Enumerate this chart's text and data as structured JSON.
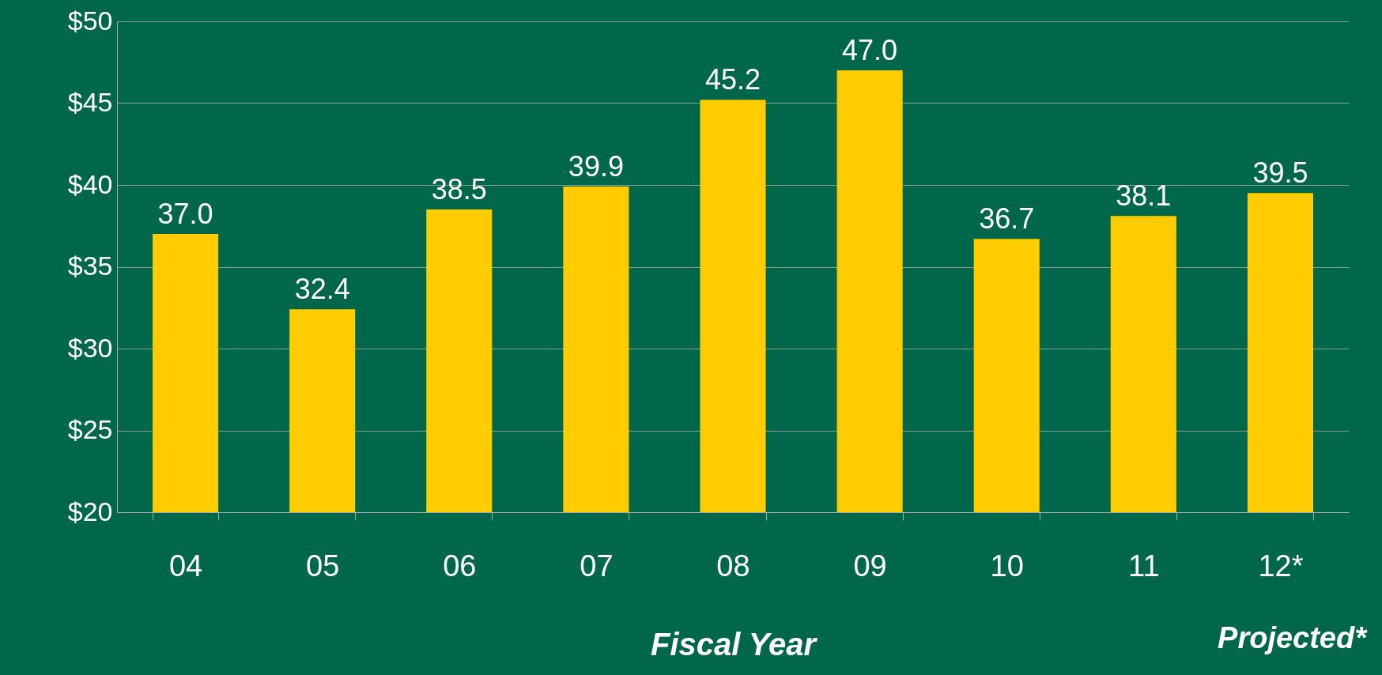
{
  "chart_data": {
    "type": "bar",
    "xlabel": "Fiscal Year",
    "annotations": [
      "Projected*"
    ],
    "categories": [
      "04",
      "05",
      "06",
      "07",
      "08",
      "09",
      "10",
      "11",
      "12*"
    ],
    "values": [
      37.0,
      32.4,
      38.5,
      39.9,
      45.2,
      47.0,
      36.7,
      38.1,
      39.5
    ],
    "color": "#ffcc00",
    "value_labels": [
      "37.0",
      "32.4",
      "38.5",
      "39.9",
      "45.2",
      "47.0",
      "36.7",
      "38.1",
      "39.5"
    ],
    "grid": "y",
    "ylim": [
      20,
      50
    ],
    "yticks": [
      {
        "value": 20,
        "label": "$20"
      },
      {
        "value": 25,
        "label": "$25"
      },
      {
        "value": 30,
        "label": "$30"
      },
      {
        "value": 35,
        "label": "$35"
      },
      {
        "value": 40,
        "label": "$40"
      },
      {
        "value": 45,
        "label": "$45"
      },
      {
        "value": 50,
        "label": "$50"
      }
    ]
  }
}
